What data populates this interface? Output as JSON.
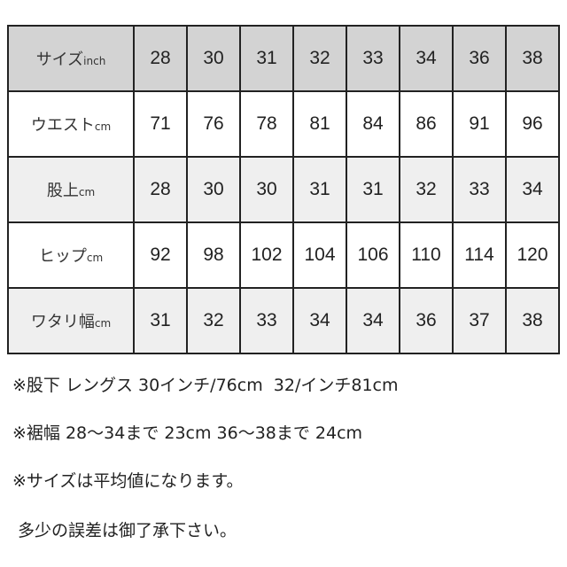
{
  "table": {
    "rows": [
      {
        "label": "サイズ",
        "unit": "inch",
        "values": [
          "28",
          "30",
          "31",
          "32",
          "33",
          "34",
          "36",
          "38"
        ],
        "style": "header"
      },
      {
        "label": "ウエスト",
        "unit": "cm",
        "values": [
          "71",
          "76",
          "78",
          "81",
          "84",
          "86",
          "91",
          "96"
        ],
        "style": "plain"
      },
      {
        "label": "股上",
        "unit": "cm",
        "values": [
          "28",
          "30",
          "30",
          "31",
          "31",
          "32",
          "33",
          "34"
        ],
        "style": "alt"
      },
      {
        "label": "ヒップ",
        "unit": "cm",
        "values": [
          "92",
          "98",
          "102",
          "104",
          "106",
          "110",
          "114",
          "120"
        ],
        "style": "plain"
      },
      {
        "label": "ワタリ幅",
        "unit": "cm",
        "values": [
          "31",
          "32",
          "33",
          "34",
          "34",
          "36",
          "37",
          "38"
        ],
        "style": "alt"
      }
    ]
  },
  "notes": [
    "※股下 レングス 30インチ/76cm  32/インチ81cm",
    "※裾幅 28～34まで 23cm 36～38まで 24cm",
    "※サイズは平均値になります。",
    " 多少の誤差は御了承下さい。"
  ],
  "colors": {
    "header_bg": "#d3d3d3",
    "alt_bg": "#efefef",
    "border": "#222222"
  }
}
